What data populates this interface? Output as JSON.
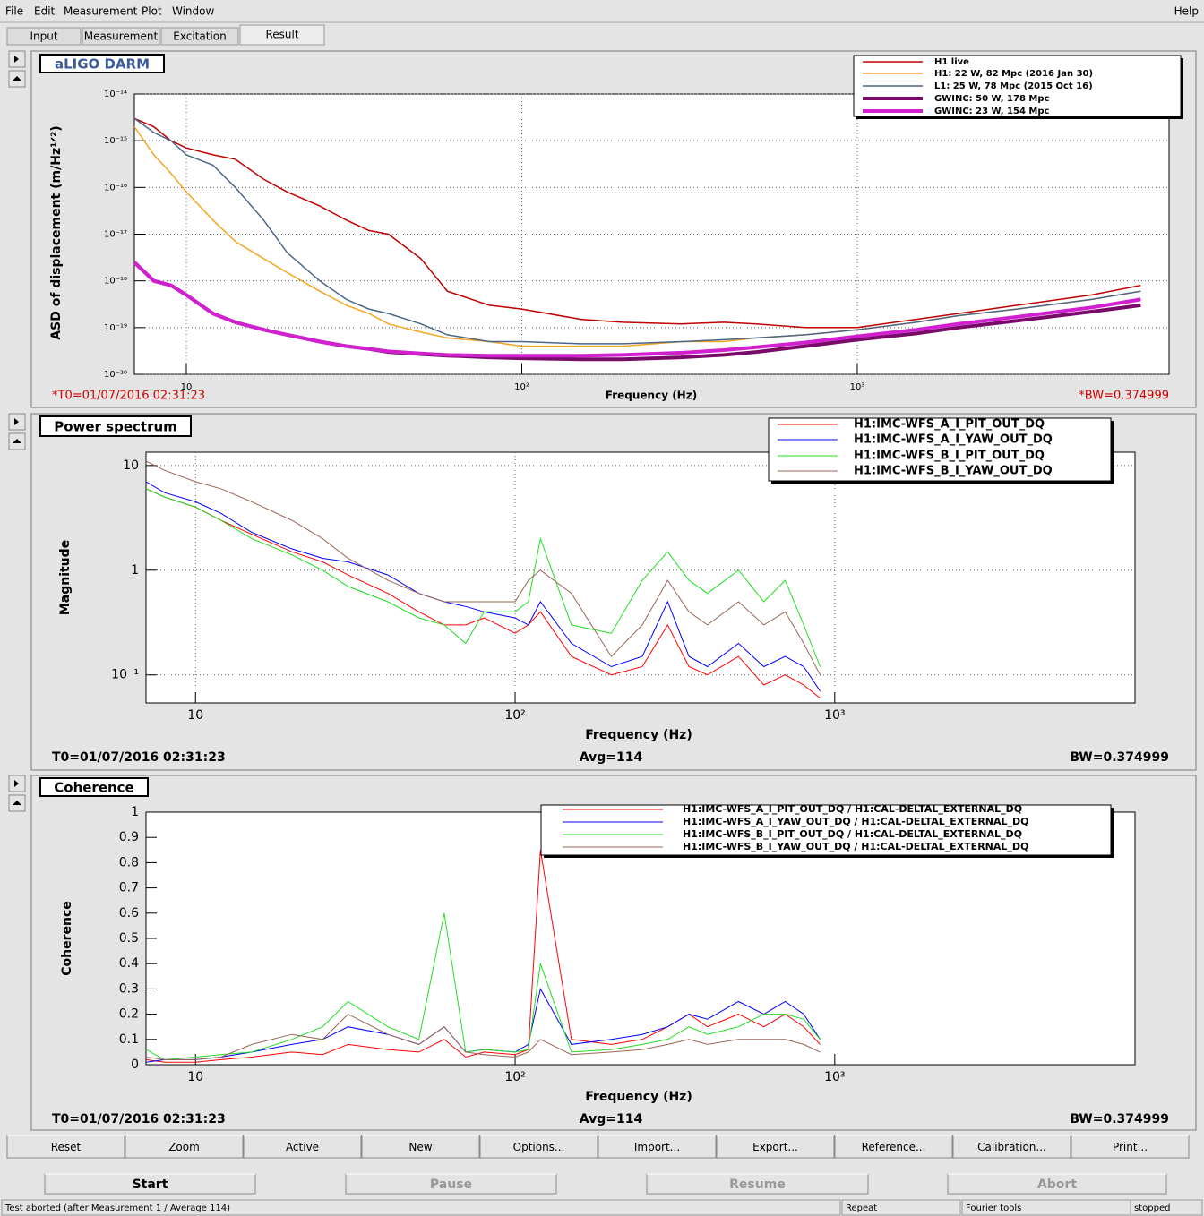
{
  "menu": [
    "File",
    "Edit",
    "Measurement",
    "Plot",
    "Window"
  ],
  "help": "Help",
  "tabs": [
    "Input",
    "Measurement",
    "Excitation",
    "Result"
  ],
  "chart_data": [
    {
      "type": "line",
      "title": "aLIGO DARM",
      "xlabel": "Frequency (Hz)",
      "ylabel": "ASD of displacement (m/Hz¹ᐟ²)",
      "xscale": "log",
      "yscale": "log",
      "grid": true,
      "t0": "*T0=01/07/2016 02:31:23",
      "bw": "*BW=0.374999",
      "xlim": [
        7,
        8500
      ],
      "ylim": [
        1e-20,
        1e-14
      ],
      "xticks": [
        10,
        {
          "value": 100,
          "label": "10²"
        },
        {
          "value": 1000,
          "label": "10³"
        }
      ],
      "yticks": [
        {
          "value": 1e-20,
          "label": "10⁻²⁰"
        },
        {
          "value": 1e-19,
          "label": "10⁻¹⁹"
        },
        {
          "value": 1e-18,
          "label": "10⁻¹⁸"
        },
        {
          "value": 1e-17,
          "label": "10⁻¹⁷"
        },
        {
          "value": 1e-16,
          "label": "10⁻¹⁶"
        },
        {
          "value": 1e-15,
          "label": "10⁻¹⁵"
        },
        {
          "value": 1e-14,
          "label": "10⁻¹⁴"
        }
      ],
      "x": [
        7,
        8,
        9,
        10,
        12,
        14,
        17,
        20,
        25,
        30,
        35,
        40,
        50,
        60,
        80,
        100,
        150,
        200,
        300,
        400,
        500,
        700,
        1000,
        1500,
        2000,
        3000,
        5000,
        7000
      ],
      "series": [
        {
          "name": "H1 live",
          "color": "#c00000",
          "line_width": 1.5,
          "values": [
            3e-15,
            2e-15,
            1e-15,
            7e-16,
            5e-16,
            4e-16,
            1.5e-16,
            8e-17,
            4e-17,
            2e-17,
            1.2e-17,
            1e-17,
            3e-18,
            6e-19,
            3e-19,
            2.5e-19,
            1.5e-19,
            1.3e-19,
            1.2e-19,
            1.3e-19,
            1.2e-19,
            1e-19,
            1e-19,
            1.5e-19,
            2e-19,
            3e-19,
            5e-19,
            8e-19
          ]
        },
        {
          "name": "H1: 22 W, 82 Mpc (2016 Jan 30)",
          "color": "#f5a623",
          "line_width": 1.5,
          "values": [
            2e-15,
            5e-16,
            2e-16,
            8e-17,
            2e-17,
            7e-18,
            3e-18,
            1.5e-18,
            6e-19,
            3e-19,
            2e-19,
            1.2e-19,
            8e-20,
            6e-20,
            5e-20,
            4e-20,
            4e-20,
            4e-20,
            5e-20,
            5e-20,
            6e-20,
            7e-20,
            9e-20,
            1.3e-19,
            1.8e-19,
            2.5e-19,
            4e-19,
            6e-19
          ]
        },
        {
          "name": "L1: 25 W, 78 Mpc (2015 Oct 16)",
          "color": "#4a6588",
          "line_width": 1.5,
          "values": [
            3e-15,
            1.5e-15,
            1e-15,
            5e-16,
            3e-16,
            1e-16,
            2e-17,
            4e-18,
            1e-18,
            4e-19,
            2.5e-19,
            2e-19,
            1.2e-19,
            7e-20,
            5e-20,
            5e-20,
            4.5e-20,
            4.5e-20,
            5e-20,
            5.5e-20,
            6e-20,
            7e-20,
            9e-20,
            1.3e-19,
            1.8e-19,
            2.5e-19,
            4e-19,
            6e-19
          ]
        },
        {
          "name": "GWINC: 50 W, 178 Mpc",
          "color": "#7a0a6a",
          "line_width": 4,
          "values": [
            2.5e-18,
            1e-18,
            8e-19,
            5e-19,
            2e-19,
            1.3e-19,
            9e-20,
            7e-20,
            5e-20,
            4e-20,
            3.5e-20,
            3e-20,
            2.7e-20,
            2.5e-20,
            2.3e-20,
            2.2e-20,
            2.1e-20,
            2.1e-20,
            2.3e-20,
            2.6e-20,
            3e-20,
            4e-20,
            5.5e-20,
            7.5e-20,
            1e-19,
            1.4e-19,
            2.2e-19,
            3e-19
          ]
        },
        {
          "name": "GWINC: 23 W, 154 Mpc",
          "color": "#d020d0",
          "line_width": 4,
          "values": [
            2.5e-18,
            1e-18,
            8e-19,
            5e-19,
            2e-19,
            1.3e-19,
            9e-20,
            7e-20,
            5e-20,
            4e-20,
            3.5e-20,
            3.1e-20,
            2.8e-20,
            2.6e-20,
            2.5e-20,
            2.5e-20,
            2.5e-20,
            2.6e-20,
            2.9e-20,
            3.3e-20,
            3.8e-20,
            4.8e-20,
            6.5e-20,
            9e-20,
            1.2e-19,
            1.7e-19,
            2.7e-19,
            4e-19
          ]
        }
      ]
    },
    {
      "type": "line",
      "title": "Power spectrum",
      "xlabel": "Frequency (Hz)",
      "ylabel": "Magnitude",
      "xscale": "log",
      "yscale": "log",
      "grid": true,
      "t0": "T0=01/07/2016 02:31:23",
      "avg": "Avg=114",
      "bw": "BW=0.374999",
      "xlim": [
        7,
        8700
      ],
      "ylim": [
        0.054,
        13.4
      ],
      "xticks": [
        10,
        {
          "value": 100,
          "label": "10²"
        },
        {
          "value": 1000,
          "label": "10³"
        }
      ],
      "yticks": [
        {
          "value": 0.1,
          "label": "10⁻¹"
        },
        1,
        10
      ],
      "x": [
        7,
        8,
        10,
        12,
        15,
        20,
        25,
        30,
        40,
        50,
        60,
        70,
        80,
        100,
        110,
        120,
        150,
        200,
        250,
        300,
        350,
        400,
        500,
        600,
        700,
        800,
        900
      ],
      "series": [
        {
          "name": "H1:IMC-WFS_A_I_PIT_OUT_DQ",
          "color": "#ff0000",
          "line_width": 1,
          "values": [
            6,
            5,
            4,
            3,
            2.2,
            1.5,
            1.2,
            0.9,
            0.6,
            0.4,
            0.3,
            0.3,
            0.35,
            0.25,
            0.3,
            0.4,
            0.15,
            0.1,
            0.12,
            0.3,
            0.12,
            0.1,
            0.15,
            0.08,
            0.1,
            0.08,
            0.06
          ]
        },
        {
          "name": "H1:IMC-WFS_A_I_YAW_OUT_DQ",
          "color": "#0000ff",
          "line_width": 1,
          "values": [
            7,
            5.5,
            4.5,
            3.5,
            2.3,
            1.6,
            1.3,
            1.2,
            0.9,
            0.6,
            0.5,
            0.45,
            0.4,
            0.35,
            0.3,
            0.5,
            0.2,
            0.12,
            0.15,
            0.5,
            0.15,
            0.12,
            0.2,
            0.12,
            0.15,
            0.12,
            0.07
          ]
        },
        {
          "name": "H1:IMC-WFS_B_I_PIT_OUT_DQ",
          "color": "#22dd22",
          "line_width": 1,
          "values": [
            6,
            5,
            4,
            3,
            2,
            1.4,
            1,
            0.7,
            0.5,
            0.35,
            0.3,
            0.2,
            0.4,
            0.4,
            0.5,
            2,
            0.3,
            0.25,
            0.8,
            1.5,
            0.8,
            0.6,
            1,
            0.5,
            0.8,
            0.3,
            0.12
          ]
        },
        {
          "name": "H1:IMC-WFS_B_I_YAW_OUT_DQ",
          "color": "#996655",
          "line_width": 1,
          "values": [
            11,
            9,
            7,
            6,
            4.5,
            3,
            2,
            1.3,
            0.8,
            0.6,
            0.5,
            0.5,
            0.5,
            0.5,
            0.8,
            1,
            0.6,
            0.15,
            0.3,
            0.8,
            0.4,
            0.3,
            0.5,
            0.3,
            0.4,
            0.2,
            0.1
          ]
        }
      ]
    },
    {
      "type": "line",
      "title": "Coherence",
      "xlabel": "Frequency (Hz)",
      "ylabel": "Coherence",
      "xscale": "log",
      "yscale": "linear",
      "grid": false,
      "t0": "T0=01/07/2016 02:31:23",
      "avg": "Avg=114",
      "bw": "BW=0.374999",
      "xlim": [
        7,
        8700
      ],
      "ylim": [
        0,
        1
      ],
      "xticks": [
        10,
        {
          "value": 100,
          "label": "10²"
        },
        {
          "value": 1000,
          "label": "10³"
        }
      ],
      "yticks": [
        0,
        0.1,
        0.2,
        0.3,
        0.4,
        0.5,
        0.6,
        0.7,
        0.8,
        0.9,
        1
      ],
      "x": [
        7,
        8,
        10,
        12,
        15,
        20,
        25,
        30,
        40,
        50,
        60,
        70,
        80,
        100,
        110,
        120,
        150,
        200,
        250,
        300,
        350,
        400,
        500,
        600,
        700,
        800,
        900
      ],
      "series": [
        {
          "name": "H1:IMC-WFS_A_I_PIT_OUT_DQ / H1:CAL-DELTAL_EXTERNAL_DQ",
          "color": "#ff0000",
          "line_width": 1,
          "values": [
            0.02,
            0.01,
            0.01,
            0.02,
            0.03,
            0.05,
            0.04,
            0.08,
            0.06,
            0.05,
            0.1,
            0.03,
            0.05,
            0.04,
            0.06,
            0.85,
            0.1,
            0.08,
            0.1,
            0.15,
            0.2,
            0.15,
            0.2,
            0.15,
            0.2,
            0.15,
            0.08
          ]
        },
        {
          "name": "H1:IMC-WFS_A_I_YAW_OUT_DQ / H1:CAL-DELTAL_EXTERNAL_DQ",
          "color": "#0000ff",
          "line_width": 1,
          "values": [
            0.01,
            0.02,
            0.02,
            0.03,
            0.05,
            0.08,
            0.1,
            0.15,
            0.12,
            0.08,
            0.15,
            0.05,
            0.06,
            0.05,
            0.08,
            0.3,
            0.08,
            0.1,
            0.12,
            0.15,
            0.2,
            0.18,
            0.25,
            0.2,
            0.25,
            0.2,
            0.1
          ]
        },
        {
          "name": "H1:IMC-WFS_B_I_PIT_OUT_DQ / H1:CAL-DELTAL_EXTERNAL_DQ",
          "color": "#22dd22",
          "line_width": 1,
          "values": [
            0.06,
            0.02,
            0.03,
            0.04,
            0.05,
            0.1,
            0.15,
            0.25,
            0.15,
            0.1,
            0.6,
            0.05,
            0.06,
            0.05,
            0.06,
            0.4,
            0.05,
            0.06,
            0.08,
            0.1,
            0.15,
            0.12,
            0.15,
            0.2,
            0.2,
            0.18,
            0.1
          ]
        },
        {
          "name": "H1:IMC-WFS_B_I_YAW_OUT_DQ / H1:CAL-DELTAL_EXTERNAL_DQ",
          "color": "#996655",
          "line_width": 1,
          "values": [
            0.03,
            0.02,
            0.02,
            0.03,
            0.08,
            0.12,
            0.1,
            0.2,
            0.12,
            0.08,
            0.15,
            0.05,
            0.04,
            0.03,
            0.05,
            0.1,
            0.04,
            0.05,
            0.06,
            0.08,
            0.1,
            0.08,
            0.1,
            0.1,
            0.1,
            0.08,
            0.05
          ]
        }
      ]
    }
  ],
  "plot_buttons": [
    "Reset",
    "Zoom",
    "Active",
    "New",
    "Options...",
    "Import...",
    "Export...",
    "Reference...",
    "Calibration...",
    "Print..."
  ],
  "controls": [
    {
      "label": "Start",
      "enabled": true
    },
    {
      "label": "Pause",
      "enabled": false
    },
    {
      "label": "Resume",
      "enabled": false
    },
    {
      "label": "Abort",
      "enabled": false
    }
  ],
  "status": [
    "Test aborted (after Measurement 1 / Average 114)",
    "Repeat",
    "Fourier tools",
    "stopped"
  ]
}
